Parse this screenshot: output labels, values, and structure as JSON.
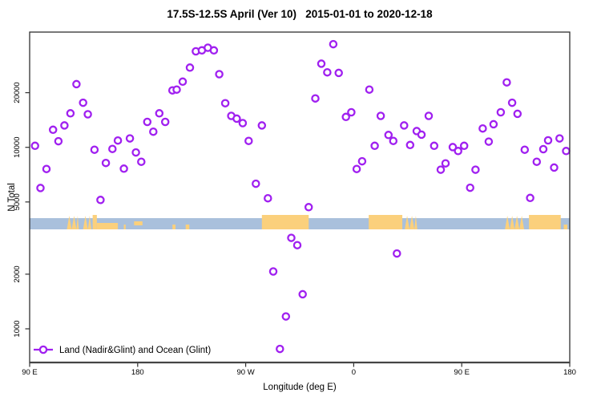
{
  "title": "17.5S-12.5S April (Ver 10)   2015-01-01 to 2020-12-18",
  "colors": {
    "point": "#A020F0",
    "ocean_band": "#A9C0DC",
    "land_patch": "#FBD07C",
    "axis": "#303030"
  },
  "chart_data": {
    "type": "scatter",
    "title": "17.5S-12.5S April (Ver 10)   2015-01-01 to 2020-12-18",
    "xlabel": "Longitude (deg E)",
    "ylabel": "N Total",
    "x_axis": {
      "domain_deg": [
        90,
        540
      ],
      "note": "longitude axis wraps eastward: 90E -> 180 -> 90W -> 0 -> 90E -> 180",
      "ticks": [
        {
          "deg": 90,
          "label": "90 E"
        },
        {
          "deg": 180,
          "label": "180"
        },
        {
          "deg": 270,
          "label": "90 W"
        },
        {
          "deg": 360,
          "label": "0"
        },
        {
          "deg": 450,
          "label": "90 E"
        },
        {
          "deg": 540,
          "label": "180"
        }
      ]
    },
    "y_axis": {
      "scale": "log10",
      "ticks": [
        1000,
        2000,
        5000,
        10000,
        20000
      ],
      "range": [
        650,
        43000
      ]
    },
    "legend_position": "bottom-left",
    "grid": false,
    "series": [
      {
        "name": "Land (Nadir&Glint) and Ocean (Glint)",
        "marker": "open-circle-on-line",
        "color": "#A020F0",
        "points": [
          [
            94.5,
            10200
          ],
          [
            99,
            5970
          ],
          [
            104,
            7600
          ],
          [
            109.5,
            12500
          ],
          [
            114,
            10800
          ],
          [
            119,
            13200
          ],
          [
            124,
            15400
          ],
          [
            129,
            22300
          ],
          [
            134.5,
            17600
          ],
          [
            138.5,
            15200
          ],
          [
            144,
            9700
          ],
          [
            149,
            5130
          ],
          [
            153.5,
            8200
          ],
          [
            159,
            9800
          ],
          [
            163.5,
            10900
          ],
          [
            168.5,
            7630
          ],
          [
            173.5,
            11200
          ],
          [
            178.5,
            9370
          ],
          [
            183,
            8330
          ],
          [
            188,
            13800
          ],
          [
            193,
            12200
          ],
          [
            198,
            15400
          ],
          [
            203,
            13800
          ],
          [
            209,
            20600
          ],
          [
            212.5,
            20800
          ],
          [
            217.5,
            23000
          ],
          [
            223.5,
            27500
          ],
          [
            228.5,
            33800
          ],
          [
            233.5,
            34200
          ],
          [
            238.5,
            35400
          ],
          [
            243.5,
            34200
          ],
          [
            248,
            25300
          ],
          [
            253,
            17500
          ],
          [
            258,
            14900
          ],
          [
            262.5,
            14400
          ],
          [
            267.5,
            13600
          ],
          [
            272.5,
            10850
          ],
          [
            278.5,
            6300
          ],
          [
            283.5,
            13200
          ],
          [
            288.5,
            5240
          ],
          [
            293,
            2070
          ],
          [
            298.5,
            775
          ],
          [
            303.5,
            1170
          ],
          [
            308,
            3170
          ],
          [
            313,
            2890
          ],
          [
            317.5,
            1550
          ],
          [
            322.5,
            4680
          ],
          [
            328,
            18600
          ],
          [
            333,
            28900
          ],
          [
            338,
            25900
          ],
          [
            343,
            37000
          ],
          [
            347.5,
            25700
          ],
          [
            353.5,
            14700
          ],
          [
            358,
            15600
          ],
          [
            362.5,
            7600
          ],
          [
            367,
            8380
          ],
          [
            373,
            20800
          ],
          [
            377.5,
            10200
          ],
          [
            382.5,
            14900
          ],
          [
            389,
            11700
          ],
          [
            393,
            10850
          ],
          [
            396,
            2600
          ],
          [
            402,
            13200
          ],
          [
            407,
            10300
          ],
          [
            412.5,
            12300
          ],
          [
            416.5,
            11750
          ],
          [
            422.5,
            14900
          ],
          [
            427,
            10200
          ],
          [
            432.5,
            7530
          ],
          [
            436.5,
            8160
          ],
          [
            442.5,
            10030
          ],
          [
            447,
            9540
          ],
          [
            452,
            10200
          ],
          [
            457,
            5990
          ],
          [
            461.5,
            7530
          ],
          [
            467.5,
            12700
          ],
          [
            472.5,
            10750
          ],
          [
            476.5,
            13400
          ],
          [
            482.5,
            15600
          ],
          [
            487.5,
            22800
          ],
          [
            492,
            17600
          ],
          [
            496.5,
            15300
          ],
          [
            502.5,
            9700
          ],
          [
            507,
            5260
          ],
          [
            512.5,
            8330
          ],
          [
            518,
            9770
          ],
          [
            522,
            10930
          ],
          [
            527,
            7740
          ],
          [
            531.5,
            11200
          ],
          [
            537,
            9540
          ]
        ]
      }
    ],
    "surface_strip": {
      "description": "horizontal strip showing surface type vs longitude",
      "n_value_range": [
        3150,
        3600
      ],
      "ocean_color": "#A9C0DC",
      "land_color": "#FBD07C",
      "land_patches": [
        {
          "from": 121,
          "to": 131,
          "style": "islands"
        },
        {
          "from": 134.5,
          "to": 141.5,
          "style": "islands"
        },
        {
          "from": 142.5,
          "to": 146,
          "style": "solid"
        },
        {
          "from": 146,
          "to": 163.5,
          "style": "lower"
        },
        {
          "from": 168.5,
          "to": 170,
          "style": "dot"
        },
        {
          "from": 177,
          "to": 184,
          "style": "mid"
        },
        {
          "from": 209,
          "to": 211.5,
          "style": "dot"
        },
        {
          "from": 220,
          "to": 223,
          "style": "dot"
        },
        {
          "from": 283.5,
          "to": 322.5,
          "style": "solid"
        },
        {
          "from": 372.5,
          "to": 400.5,
          "style": "solid"
        },
        {
          "from": 402.5,
          "to": 413,
          "style": "islands"
        },
        {
          "from": 486,
          "to": 502,
          "style": "islands"
        },
        {
          "from": 506,
          "to": 532.5,
          "style": "solid"
        },
        {
          "from": 535,
          "to": 538,
          "style": "dot"
        }
      ]
    }
  }
}
